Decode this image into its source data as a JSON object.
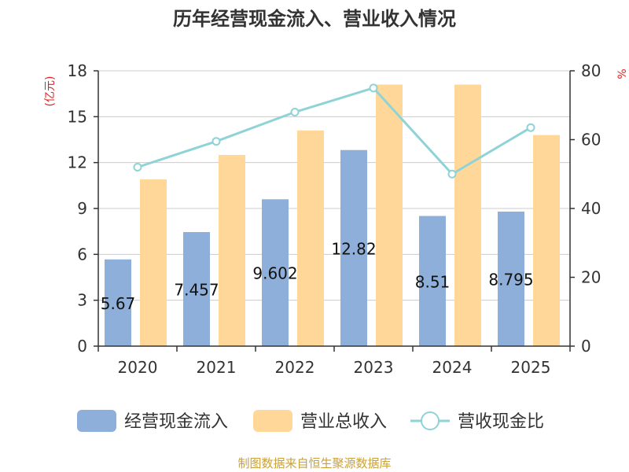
{
  "chart_data": {
    "type": "bar",
    "title": "历年经营现金流入、营业收入情况",
    "categories": [
      "2020",
      "2021",
      "2022",
      "2023",
      "2024",
      "2025"
    ],
    "series": [
      {
        "name": "经营现金流入",
        "kind": "bar",
        "axis": "left",
        "color": "#8eafd9",
        "values": [
          5.67,
          7.457,
          9.602,
          12.82,
          8.51,
          8.795
        ],
        "labels": [
          "5.67",
          "7.457",
          "9.602",
          "12.82",
          "8.51",
          "8.795"
        ]
      },
      {
        "name": "营业总收入",
        "kind": "bar",
        "axis": "left",
        "color": "#ffd899",
        "values": [
          10.9,
          12.5,
          14.1,
          17.1,
          17.1,
          13.8
        ]
      },
      {
        "name": "营收现金比",
        "kind": "line",
        "axis": "right",
        "color": "#8fd3d7",
        "values": [
          52,
          59.5,
          68,
          75,
          50,
          63.5
        ]
      }
    ],
    "y_left": {
      "unit_label": "(亿元)",
      "min": 0,
      "max": 18,
      "ticks": [
        "0",
        "3",
        "6",
        "9",
        "12",
        "15",
        "18"
      ]
    },
    "y_right": {
      "unit_label": "%",
      "min": 0,
      "max": 80,
      "ticks": [
        "0",
        "20",
        "40",
        "60",
        "80"
      ]
    },
    "grid": true,
    "legend_position": "bottom"
  },
  "footer": {
    "source": "制图数据来自恒生聚源数据库"
  },
  "colors": {
    "axis": "#333333",
    "grid": "#cccccc",
    "unit": "#e02020",
    "source": "#c9a13b"
  }
}
